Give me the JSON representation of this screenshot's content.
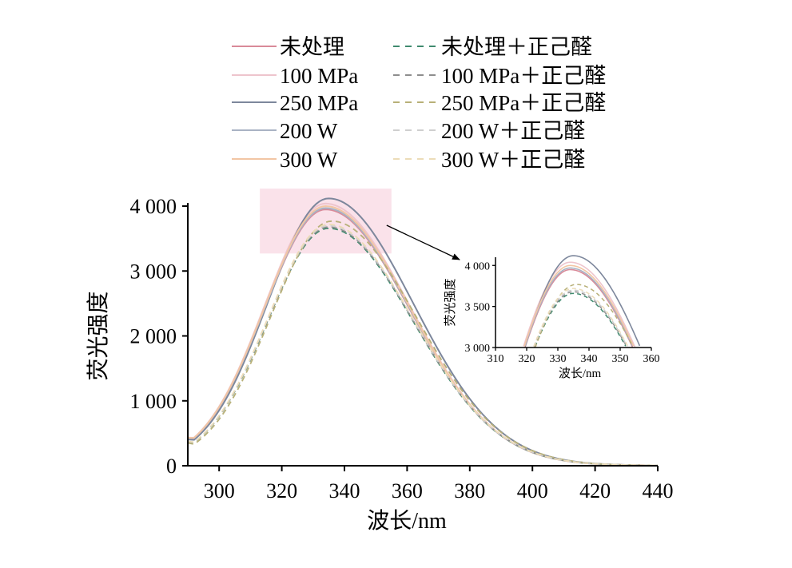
{
  "chart_data": {
    "type": "line",
    "title": "",
    "xlabel": "波长/nm",
    "ylabel": "荧光强度",
    "xlim": [
      290,
      440
    ],
    "ylim": [
      0,
      4000
    ],
    "xticks": [
      300,
      320,
      340,
      360,
      380,
      400,
      420,
      440
    ],
    "xtick_labels": [
      "300",
      "320",
      "340",
      "360",
      "380",
      "400",
      "420",
      "440"
    ],
    "yticks": [
      0,
      1000,
      2000,
      3000,
      4000
    ],
    "ytick_labels": [
      "0",
      "1 000",
      "2 000",
      "3 000",
      "4 000"
    ],
    "grid": false,
    "legend_position": "top-center",
    "series": [
      {
        "name": "未处理",
        "color": "#d98a99",
        "dash": false,
        "peak_x": 334,
        "peak_y": 3930
      },
      {
        "name": "100 MPa",
        "color": "#eec5cd",
        "dash": false,
        "peak_x": 334,
        "peak_y": 4020
      },
      {
        "name": "250 MPa",
        "color": "#7d879c",
        "dash": false,
        "peak_x": 335,
        "peak_y": 4100
      },
      {
        "name": "200 W",
        "color": "#a9b3c4",
        "dash": false,
        "peak_x": 334,
        "peak_y": 3950
      },
      {
        "name": "300 W",
        "color": "#f2c6a4",
        "dash": false,
        "peak_x": 334,
        "peak_y": 3980
      },
      {
        "name": "未处理＋正己醛",
        "color": "#3f8a6e",
        "dash": true,
        "peak_x": 335,
        "peak_y": 3640
      },
      {
        "name": "100 MPa＋正己醛",
        "color": "#8e8e8e",
        "dash": true,
        "peak_x": 335,
        "peak_y": 3660
      },
      {
        "name": "250 MPa＋正己醛",
        "color": "#b8b078",
        "dash": true,
        "peak_x": 336,
        "peak_y": 3750
      },
      {
        "name": "200 W＋正己醛",
        "color": "#cfcfcf",
        "dash": true,
        "peak_x": 335,
        "peak_y": 3680
      },
      {
        "name": "300 W＋正己醛",
        "color": "#ecdcb8",
        "dash": true,
        "peak_x": 335,
        "peak_y": 3700
      }
    ],
    "inset": {
      "xlim": [
        310,
        360
      ],
      "ylim": [
        3000,
        4100
      ],
      "xticks": [
        310,
        320,
        330,
        340,
        350,
        360
      ],
      "xtick_labels": [
        "310",
        "320",
        "330",
        "340",
        "350",
        "360"
      ],
      "yticks": [
        3000,
        3500,
        4000
      ],
      "ytick_labels": [
        "3 000",
        "3 500",
        "4 000"
      ],
      "xlabel": "波长/nm",
      "ylabel": "荧光强度",
      "highlight_x": [
        313,
        355
      ],
      "highlight_y": [
        3270,
        4270
      ],
      "highlight_color": "#f9dde6"
    }
  }
}
